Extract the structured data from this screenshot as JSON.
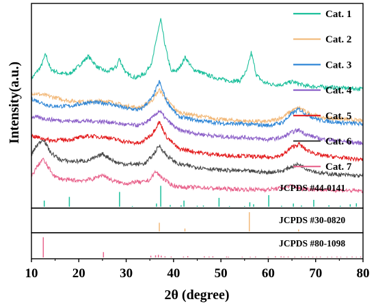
{
  "chart_data": {
    "type": "line",
    "title": "",
    "xlabel": "2θ (degree)",
    "ylabel": "Intensity(a.u.)",
    "xlim": [
      10,
      80
    ],
    "xticks": [
      "10",
      "20",
      "30",
      "40",
      "50",
      "60",
      "70",
      "80"
    ],
    "xtick_values": [
      10,
      20,
      30,
      40,
      50,
      60,
      70,
      80
    ],
    "legend_placement": "right, beside each curve",
    "series": [
      {
        "name": "Cat. 1",
        "color": "#1bbf9b",
        "x": [
          10,
          12,
          13,
          14,
          16,
          18,
          20,
          22,
          24,
          26,
          28,
          28.5,
          30,
          32,
          34,
          35.5,
          36.5,
          37.3,
          38.2,
          39.5,
          41,
          42.5,
          44,
          47,
          50,
          52,
          54,
          55.5,
          56.4,
          57.5,
          59,
          61,
          63,
          65,
          68,
          71,
          74,
          77,
          80
        ],
        "y": [
          3.9,
          5.5,
          7.2,
          5.2,
          4.6,
          4.5,
          5.6,
          6.9,
          5.4,
          4.8,
          5.5,
          6.6,
          4.6,
          4.0,
          4.6,
          6.2,
          9.6,
          11.8,
          8.4,
          4.8,
          5.1,
          6.8,
          5.2,
          4.4,
          3.8,
          3.6,
          3.6,
          5.0,
          7.4,
          4.4,
          3.4,
          3.1,
          3.1,
          3.5,
          2.9,
          2.8,
          2.7,
          2.6,
          2.5
        ]
      },
      {
        "name": "Cat. 2",
        "color": "#f2b97a",
        "x": [
          10,
          14,
          18,
          22,
          26,
          30,
          33,
          35.5,
          37,
          38.5,
          41,
          45,
          50,
          55,
          60,
          63,
          65,
          66.5,
          68,
          71,
          75,
          80
        ],
        "y": [
          2.0,
          1.5,
          0.9,
          0.8,
          0.9,
          0.2,
          0.0,
          1.0,
          2.4,
          1.1,
          -0.6,
          -1.1,
          -1.6,
          -1.8,
          -1.9,
          -1.3,
          -0.4,
          0.0,
          -0.6,
          -1.3,
          -1.5,
          -1.8
        ]
      },
      {
        "name": "Cat. 3",
        "color": "#2f86d6",
        "x": [
          10,
          14,
          18,
          22,
          26,
          30,
          33,
          35.5,
          37,
          38.5,
          41,
          45,
          50,
          55,
          60,
          63,
          65,
          66.5,
          68,
          71,
          75,
          80
        ],
        "y": [
          1.2,
          0.2,
          0.2,
          0.7,
          0.6,
          -0.1,
          -0.3,
          1.3,
          3.5,
          0.9,
          -1.2,
          -1.7,
          -2.1,
          -2.2,
          -2.4,
          -2.0,
          -0.8,
          -0.2,
          -0.9,
          -1.7,
          -2.0,
          -2.2
        ]
      },
      {
        "name": "Cat. 4",
        "color": "#8c60c8",
        "x": [
          10,
          14,
          18,
          22,
          26,
          30,
          33,
          35.5,
          37,
          38.5,
          41,
          45,
          50,
          55,
          60,
          63,
          65,
          66.5,
          68,
          71,
          75,
          80
        ],
        "y": [
          -1.2,
          -1.6,
          -1.8,
          -1.8,
          -1.9,
          -2.3,
          -2.4,
          -1.4,
          -0.4,
          -1.6,
          -3.0,
          -3.5,
          -3.9,
          -4.0,
          -4.3,
          -4.0,
          -3.3,
          -3.0,
          -3.6,
          -4.2,
          -4.5,
          -4.8
        ]
      },
      {
        "name": "Cat. 5",
        "color": "#e31a1c",
        "x": [
          10,
          14,
          18,
          22,
          26,
          30,
          33,
          35.5,
          37,
          38.5,
          41,
          45,
          50,
          55,
          60,
          63,
          65,
          66.5,
          68,
          71,
          75,
          80
        ],
        "y": [
          -3.8,
          -4.4,
          -4.3,
          -3.8,
          -4.0,
          -4.6,
          -4.8,
          -3.5,
          -1.9,
          -3.9,
          -5.5,
          -6.0,
          -6.4,
          -6.5,
          -6.7,
          -6.4,
          -5.3,
          -4.9,
          -5.7,
          -6.4,
          -6.7,
          -7.0
        ]
      },
      {
        "name": "Cat. 6",
        "color": "#4a4a4a",
        "x": [
          10,
          11,
          12.5,
          14,
          16,
          18,
          20,
          22,
          24,
          25,
          26.5,
          28,
          30,
          32,
          34,
          35.5,
          37,
          38.5,
          41,
          45,
          50,
          55,
          60,
          63,
          65,
          66.5,
          68,
          71,
          75,
          80
        ],
        "y": [
          -6.3,
          -5.2,
          -4.2,
          -6.0,
          -7.0,
          -7.2,
          -7.2,
          -7.1,
          -6.6,
          -6.2,
          -6.8,
          -7.4,
          -7.6,
          -7.6,
          -7.5,
          -6.5,
          -5.1,
          -6.4,
          -7.6,
          -8.0,
          -8.4,
          -8.5,
          -8.7,
          -8.5,
          -7.9,
          -7.6,
          -8.2,
          -8.8,
          -9.0,
          -9.2
        ]
      },
      {
        "name": "Cat. 7",
        "color": "#e8638c",
        "x": [
          10,
          11,
          12.4,
          13.5,
          15,
          17,
          20,
          23,
          25,
          27,
          29,
          31,
          32,
          33,
          35,
          36.2,
          37.2,
          38.5,
          40,
          42,
          45,
          50,
          55,
          60,
          63,
          65,
          67,
          70,
          75,
          80
        ],
        "y": [
          -9.3,
          -8.1,
          -6.9,
          -8.0,
          -9.3,
          -9.7,
          -9.8,
          -9.6,
          -9.0,
          -9.8,
          -10.1,
          -10.2,
          -9.9,
          -10.1,
          -9.7,
          -8.6,
          -9.2,
          -9.9,
          -10.5,
          -10.7,
          -10.7,
          -10.9,
          -11.0,
          -11.0,
          -10.8,
          -10.5,
          -10.9,
          -11.0,
          -11.1,
          -11.2
        ]
      }
    ],
    "reference_patterns": [
      {
        "name": "JCPDS #44-0141",
        "color": "#1bbf9b",
        "peaks": [
          [
            12.7,
            25
          ],
          [
            18.0,
            40
          ],
          [
            28.6,
            60
          ],
          [
            31.3,
            3
          ],
          [
            36.4,
            13
          ],
          [
            37.3,
            85
          ],
          [
            39.3,
            7
          ],
          [
            41.6,
            6
          ],
          [
            42.2,
            25
          ],
          [
            45.0,
            4
          ],
          [
            46.3,
            5
          ],
          [
            49.6,
            36
          ],
          [
            51.8,
            3
          ],
          [
            55.0,
            3
          ],
          [
            56.1,
            18
          ],
          [
            56.9,
            10
          ],
          [
            60.1,
            47
          ],
          [
            62.8,
            4
          ],
          [
            65.3,
            13
          ],
          [
            67.0,
            5
          ],
          [
            69.6,
            28
          ],
          [
            72.8,
            6
          ],
          [
            75.2,
            4
          ],
          [
            77.3,
            10
          ],
          [
            78.6,
            14
          ]
        ]
      },
      {
        "name": "JCPDS #30-0820",
        "color": "#f2b97a",
        "peaks": [
          [
            37.0,
            45
          ],
          [
            42.4,
            15
          ],
          [
            56.0,
            100
          ],
          [
            66.4,
            10
          ]
        ]
      },
      {
        "name": "JCPDS #80-1098",
        "color": "#e8638c",
        "peaks": [
          [
            12.5,
            95
          ],
          [
            25.2,
            25
          ],
          [
            35.2,
            8
          ],
          [
            36.2,
            10
          ],
          [
            36.8,
            12
          ],
          [
            37.4,
            8
          ],
          [
            38.2,
            5
          ],
          [
            39.5,
            4
          ],
          [
            42.1,
            4
          ],
          [
            43.0,
            6
          ],
          [
            46.5,
            5
          ],
          [
            47.5,
            4
          ],
          [
            48.3,
            5
          ],
          [
            51.2,
            4
          ],
          [
            51.6,
            3
          ],
          [
            54.5,
            3
          ],
          [
            56.2,
            3
          ],
          [
            57.3,
            4
          ],
          [
            60.0,
            3
          ],
          [
            61.5,
            5
          ],
          [
            62.7,
            5
          ],
          [
            63.3,
            4
          ],
          [
            64.2,
            4
          ],
          [
            65.6,
            3
          ],
          [
            67.0,
            4
          ],
          [
            67.8,
            3
          ],
          [
            68.5,
            4
          ],
          [
            69.4,
            3
          ],
          [
            70.2,
            3
          ],
          [
            71.0,
            4
          ],
          [
            72.5,
            3
          ],
          [
            73.4,
            3
          ],
          [
            74.5,
            4
          ],
          [
            75.3,
            3
          ],
          [
            76.6,
            3
          ],
          [
            77.7,
            4
          ],
          [
            78.6,
            3
          ],
          [
            79.5,
            4
          ]
        ]
      }
    ]
  }
}
